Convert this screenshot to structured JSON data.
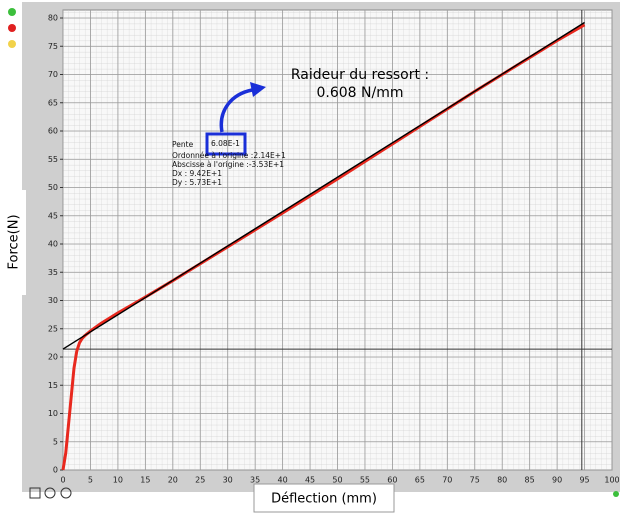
{
  "chart_data": {
    "type": "line",
    "ylabel": "Force(N)",
    "xlabel": "Déflection (mm)",
    "xlim": [
      0,
      100
    ],
    "ylim": [
      0,
      80
    ],
    "xticks": [
      0,
      5,
      10,
      15,
      20,
      25,
      30,
      35,
      40,
      45,
      50,
      55,
      60,
      65,
      70,
      75,
      80,
      85,
      90,
      95,
      100
    ],
    "yticks": [
      0,
      5,
      10,
      15,
      20,
      25,
      30,
      35,
      40,
      45,
      50,
      55,
      60,
      65,
      70,
      75,
      80
    ],
    "grid": true,
    "series": [
      {
        "color": "#e8281e",
        "x": [
          0,
          0.5,
          1,
          1.5,
          2,
          2.5,
          3,
          3.5,
          4,
          5,
          7,
          10,
          15,
          20,
          25,
          30,
          35,
          40,
          45,
          50,
          55,
          60,
          65,
          70,
          75,
          80,
          85,
          90,
          95
        ],
        "values": [
          0,
          3,
          8,
          13,
          18,
          21,
          22.5,
          23.3,
          23.8,
          24.6,
          26,
          27.8,
          30.6,
          33.5,
          36.5,
          39.5,
          42.5,
          45.5,
          48.5,
          51.5,
          54.6,
          57.7,
          60.8,
          63.9,
          67,
          70,
          73,
          76,
          78.8
        ]
      },
      {
        "color": "#000000",
        "x": [
          0,
          95
        ],
        "values": [
          21.4,
          79.2
        ]
      }
    ],
    "cursor_x": 94.5,
    "cursor_y": 21.4,
    "fit_info": {
      "slope_label": "Pente",
      "slope": "6.08E-1",
      "lines": [
        "Ordonnée à l'origine :2.14E+1",
        "Abscisse à l'origine :-3.53E+1",
        "Dx : 9.42E+1",
        "Dy : 5.73E+1"
      ]
    },
    "annotation": [
      "Raideur du ressort  :",
      "0.608 N/mm"
    ]
  }
}
